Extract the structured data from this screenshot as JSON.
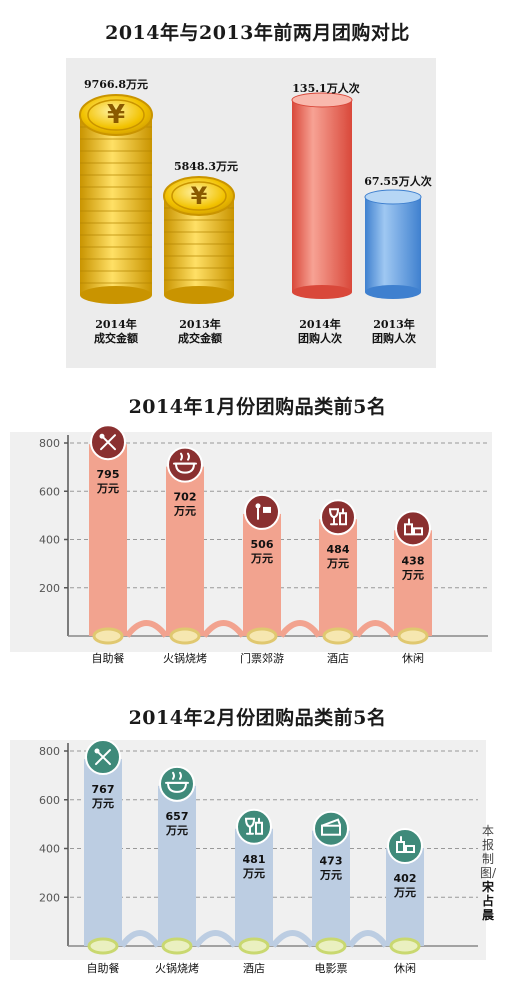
{
  "colors": {
    "coin_gold": "#f2c200",
    "coin_dark": "#c99400",
    "red_cylinder": "#ec6f5e",
    "blue_cylinder": "#5f9ee0",
    "salmon_bar": "#f0a593",
    "blue_bar": "#b9cce4",
    "icon_dark": "#7a2a2a",
    "icon_teal": "#3f8a7a",
    "base_ring": "#e5d05a"
  },
  "top": {
    "title": "2014年与2013年前两月团购对比",
    "coin_symbol": "¥",
    "coins": [
      {
        "value": "9766.8万元",
        "caption_line1": "2014年",
        "caption_line2": "成交金额"
      },
      {
        "value": "5848.3万元",
        "caption_line1": "2013年",
        "caption_line2": "成交金额"
      }
    ],
    "cylinders": [
      {
        "value": "135.1万人次",
        "caption_line1": "2014年",
        "caption_line2": "团购人次"
      },
      {
        "value": "67.55万人次",
        "caption_line1": "2013年",
        "caption_line2": "团购人次"
      }
    ]
  },
  "chart_data": [
    {
      "type": "bar",
      "title": "2014年1月份团购品类前5名",
      "categories": [
        "自助餐",
        "火锅烧烤",
        "门票郊游",
        "酒店",
        "休闲"
      ],
      "values": [
        795,
        702,
        506,
        484,
        438
      ],
      "value_labels": [
        "795",
        "702",
        "506",
        "484",
        "438"
      ],
      "unit": "万元",
      "icons": [
        "utensils-icon",
        "hotpot-icon",
        "sightseeing-icon",
        "wine-glass-icon",
        "leisure-icon"
      ],
      "ylim": [
        0,
        800
      ],
      "yticks": [
        "800",
        "600",
        "400",
        "200"
      ],
      "grid": true
    },
    {
      "type": "bar",
      "title": "2014年2月份团购品类前5名",
      "categories": [
        "自助餐",
        "火锅烧烤",
        "酒店",
        "电影票",
        "休闲"
      ],
      "values": [
        767,
        657,
        481,
        473,
        402
      ],
      "value_labels": [
        "767",
        "657",
        "481",
        "473",
        "402"
      ],
      "unit": "万元",
      "icons": [
        "utensils-icon",
        "hotpot-icon",
        "wine-glass-icon",
        "film-icon",
        "leisure-icon"
      ],
      "ylim": [
        0,
        800
      ],
      "yticks": [
        "800",
        "600",
        "400",
        "200"
      ],
      "grid": true
    }
  ],
  "credit": {
    "prefix": "本报制图/",
    "author": "宋占晨"
  }
}
